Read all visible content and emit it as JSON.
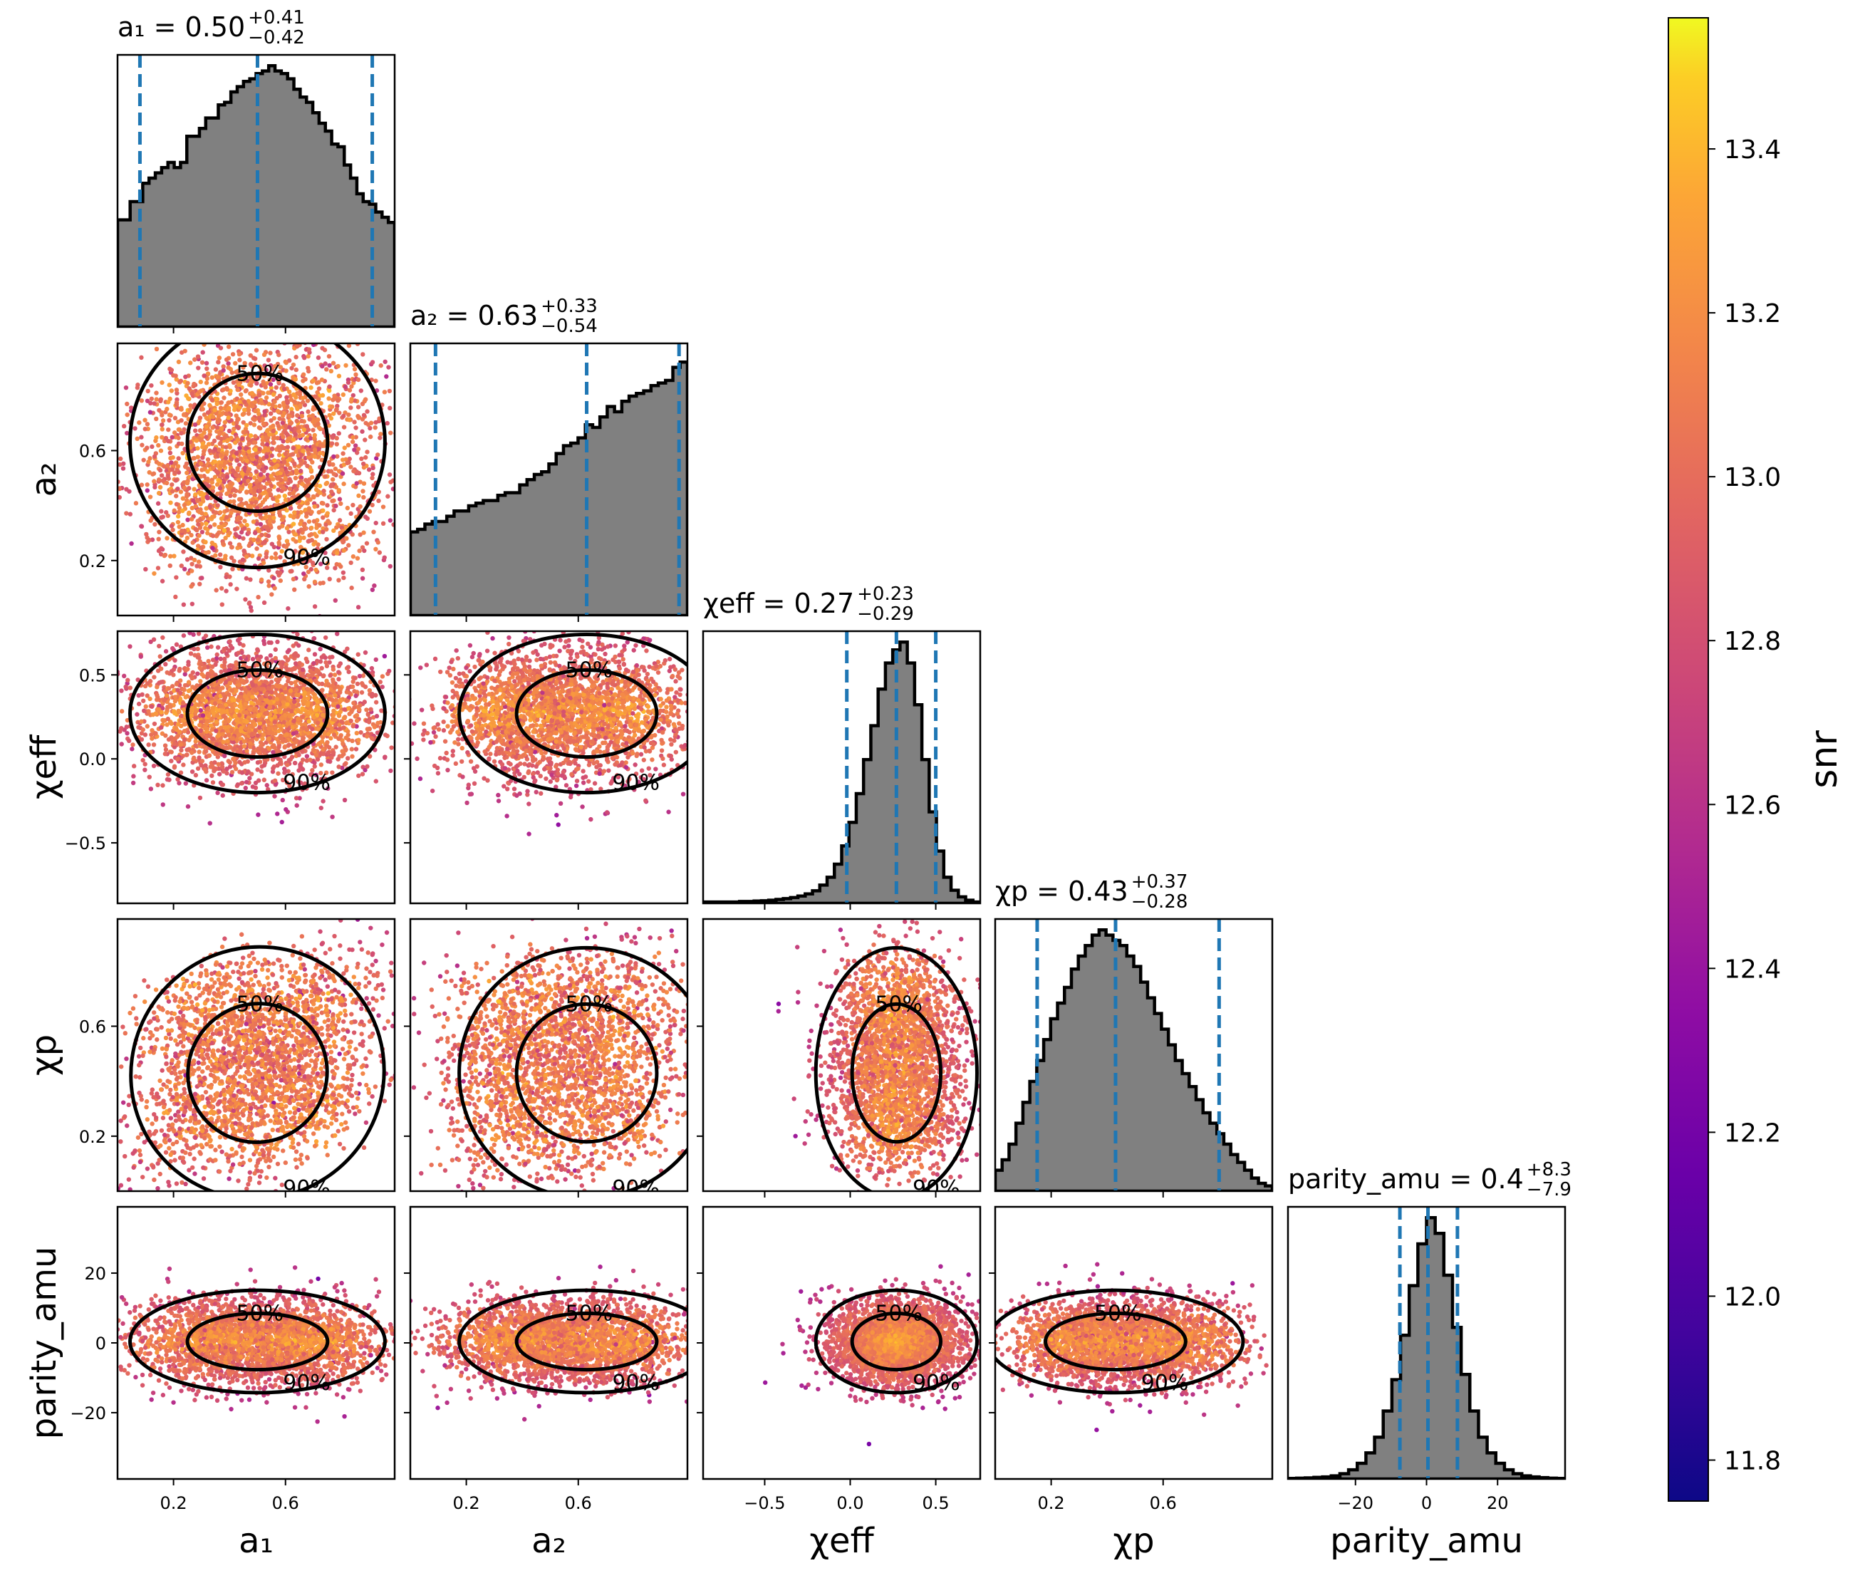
{
  "chart_data": {
    "type": "corner",
    "parameters": [
      {
        "key": "a1",
        "title_lhs": "a₁ = 0.50",
        "title_sup": "+0.41",
        "title_sub": "−0.42",
        "axis_label": "a₁",
        "range": [
          0.0,
          0.99
        ],
        "ticks": [
          0.2,
          0.6
        ],
        "tick_labels": [
          "0.2",
          "0.6"
        ],
        "quantiles": [
          0.08,
          0.5,
          0.91
        ]
      },
      {
        "key": "a2",
        "title_lhs": "a₂ = 0.63",
        "title_sup": "+0.33",
        "title_sub": "−0.54",
        "axis_label": "a₂",
        "range": [
          0.0,
          0.99
        ],
        "ticks": [
          0.2,
          0.6
        ],
        "tick_labels": [
          "0.2",
          "0.6"
        ],
        "quantiles": [
          0.09,
          0.63,
          0.96
        ]
      },
      {
        "key": "chi_eff",
        "title_lhs": "χeff = 0.27",
        "title_sup": "+0.23",
        "title_sub": "−0.29",
        "axis_label": "χeff",
        "range": [
          -0.86,
          0.76
        ],
        "ticks": [
          -0.5,
          0.0,
          0.5
        ],
        "tick_labels": [
          "−0.5",
          "0.0",
          "0.5"
        ],
        "quantiles": [
          -0.02,
          0.27,
          0.5
        ]
      },
      {
        "key": "chi_p",
        "title_lhs": "χp = 0.43",
        "title_sup": "+0.37",
        "title_sub": "−0.28",
        "axis_label": "χp",
        "range": [
          0.0,
          0.99
        ],
        "ticks": [
          0.2,
          0.6
        ],
        "tick_labels": [
          "0.2",
          "0.6"
        ],
        "quantiles": [
          0.15,
          0.43,
          0.8
        ]
      },
      {
        "key": "parity_amu",
        "title_lhs": "parity_amu = 0.4",
        "title_sup": "+8.3",
        "title_sub": "−7.9",
        "axis_label": "parity_amu",
        "range": [
          -39,
          39
        ],
        "ticks": [
          -20,
          0,
          20
        ],
        "tick_labels": [
          "−20",
          "0",
          "20"
        ],
        "quantiles": [
          -7.5,
          0.4,
          8.7
        ]
      }
    ],
    "histograms": {
      "a1": [
        0.41,
        0.41,
        0.48,
        0.48,
        0.55,
        0.57,
        0.59,
        0.61,
        0.63,
        0.61,
        0.63,
        0.73,
        0.73,
        0.76,
        0.8,
        0.8,
        0.85,
        0.86,
        0.9,
        0.92,
        0.94,
        0.95,
        0.97,
        0.98,
        1.0,
        0.98,
        0.97,
        0.95,
        0.91,
        0.88,
        0.86,
        0.82,
        0.78,
        0.75,
        0.7,
        0.69,
        0.62,
        0.57,
        0.51,
        0.48,
        0.47,
        0.44,
        0.42,
        0.4
      ],
      "a2": [
        0.32,
        0.33,
        0.35,
        0.36,
        0.36,
        0.38,
        0.4,
        0.4,
        0.42,
        0.43,
        0.44,
        0.44,
        0.46,
        0.47,
        0.47,
        0.5,
        0.52,
        0.54,
        0.55,
        0.58,
        0.62,
        0.65,
        0.66,
        0.68,
        0.73,
        0.72,
        0.76,
        0.8,
        0.78,
        0.82,
        0.84,
        0.85,
        0.86,
        0.88,
        0.89,
        0.9,
        0.95,
        0.97
      ],
      "chi_eff": [
        0.005,
        0.005,
        0.005,
        0.005,
        0.005,
        0.007,
        0.007,
        0.009,
        0.01,
        0.012,
        0.015,
        0.018,
        0.022,
        0.028,
        0.036,
        0.048,
        0.07,
        0.1,
        0.15,
        0.22,
        0.31,
        0.42,
        0.55,
        0.68,
        0.82,
        0.92,
        0.97,
        1.0,
        0.92,
        0.76,
        0.55,
        0.35,
        0.2,
        0.1,
        0.05,
        0.025,
        0.012,
        0.005
      ],
      "chi_p": [
        0.08,
        0.12,
        0.18,
        0.26,
        0.34,
        0.42,
        0.5,
        0.58,
        0.66,
        0.72,
        0.78,
        0.85,
        0.9,
        0.94,
        0.98,
        1.0,
        0.98,
        0.96,
        0.94,
        0.9,
        0.86,
        0.8,
        0.74,
        0.68,
        0.62,
        0.56,
        0.5,
        0.45,
        0.4,
        0.35,
        0.3,
        0.26,
        0.22,
        0.18,
        0.14,
        0.11,
        0.08,
        0.05,
        0.03,
        0.02
      ],
      "parity_amu": [
        0.002,
        0.003,
        0.004,
        0.006,
        0.008,
        0.012,
        0.02,
        0.035,
        0.06,
        0.1,
        0.16,
        0.26,
        0.38,
        0.55,
        0.74,
        0.9,
        1.0,
        0.94,
        0.78,
        0.58,
        0.4,
        0.26,
        0.16,
        0.1,
        0.06,
        0.035,
        0.02,
        0.012,
        0.008,
        0.005,
        0.003,
        0.002
      ]
    },
    "contour_labels": [
      "50%",
      "90%"
    ],
    "colorbar": {
      "label": "snr",
      "range": [
        11.75,
        13.56
      ],
      "ticks": [
        11.8,
        12.0,
        12.2,
        12.4,
        12.6,
        12.8,
        13.0,
        13.2,
        13.4
      ],
      "tick_labels": [
        "11.8",
        "12.0",
        "12.2",
        "12.4",
        "12.6",
        "12.8",
        "13.0",
        "13.2",
        "13.4"
      ],
      "colormap": "plasma"
    },
    "colors": {
      "hist_fill": "#808080",
      "quantile_line": "#1f77b4",
      "contour": "#000000"
    }
  }
}
